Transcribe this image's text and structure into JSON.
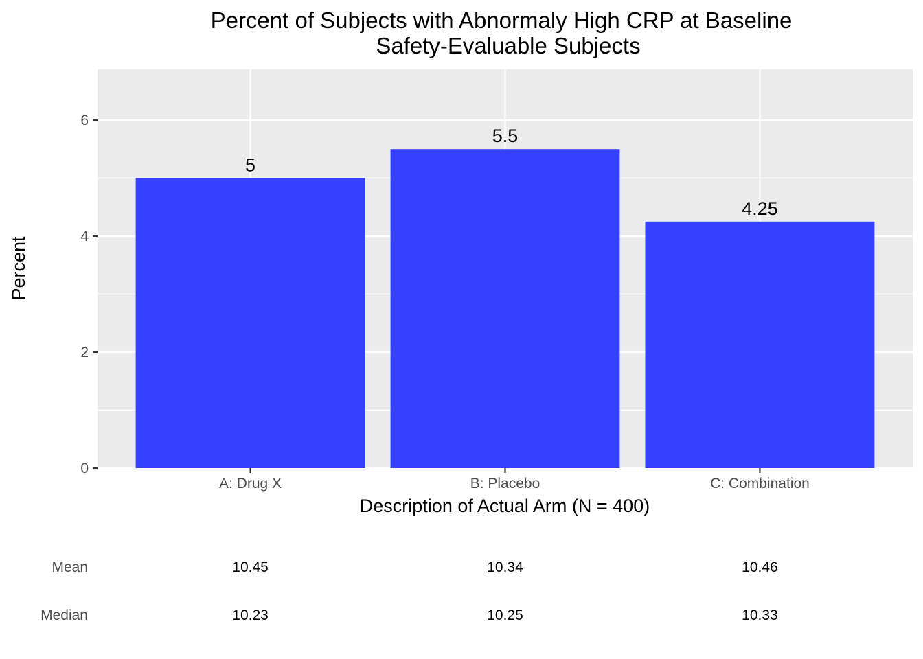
{
  "chart_data": {
    "type": "bar",
    "title": "Percent of Subjects with Abnormaly High CRP at Baseline",
    "subtitle": "Safety-Evaluable Subjects",
    "xlabel": "Description of Actual Arm (N = 400)",
    "ylabel": "Percent",
    "categories": [
      "A: Drug X",
      "B: Placebo",
      "C: Combination"
    ],
    "values": [
      5,
      5.5,
      4.25
    ],
    "data_labels": [
      "5",
      "5.5",
      "4.25"
    ],
    "ylim": [
      0,
      6.875
    ],
    "yticks": [
      0,
      2,
      4,
      6
    ],
    "ytick_labels": [
      "0",
      "2",
      "4",
      "6"
    ],
    "grid": true,
    "bar_color": "#3640FF",
    "panel_background": "#EBEBEB",
    "grid_color": "#FFFFFF",
    "summary_table": {
      "rows": [
        {
          "label": "Mean",
          "values": [
            "10.45",
            "10.34",
            "10.46"
          ]
        },
        {
          "label": "Median",
          "values": [
            "10.23",
            "10.25",
            "10.33"
          ]
        }
      ]
    }
  }
}
